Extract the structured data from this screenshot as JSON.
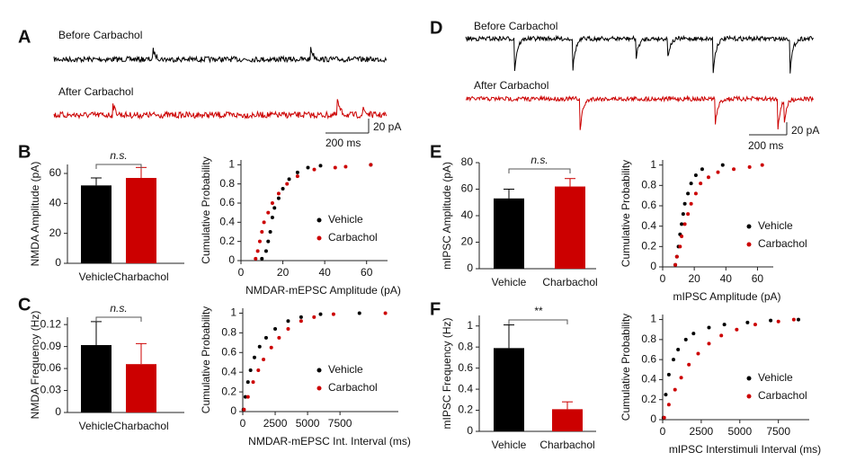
{
  "panel_labels": [
    "A",
    "B",
    "C",
    "D",
    "E",
    "F"
  ],
  "traces": [
    {
      "labels": [
        "Before Carbachol",
        "After Carbachol"
      ],
      "scale_x": "200 ms",
      "scale_y": "20 pA"
    },
    {
      "labels": [
        "Before Carbachol",
        "After Carbachol"
      ],
      "scale_x": "200 ms",
      "scale_y": "20 pA"
    }
  ],
  "chart_data": [
    {
      "type": "bar",
      "ylabel": "NMDA Amplitude (pA)",
      "categories": [
        "Vehicle",
        "Charbachol"
      ],
      "values": [
        52,
        57
      ],
      "errors": [
        5,
        7
      ],
      "colors": [
        "#000000",
        "#cc0000"
      ],
      "ylim": [
        0,
        66
      ],
      "yticks": [
        0,
        20,
        40,
        60
      ],
      "annotation": "n.s."
    },
    {
      "type": "scatter",
      "ylabel": "Cumulative Probability",
      "xlabel": "NMDAR-mEPSC Amplitude (pA)",
      "xlim": [
        0,
        70
      ],
      "xticks": [
        0,
        20,
        40,
        60
      ],
      "ylim": [
        0,
        1.05
      ],
      "yticks": [
        0,
        0.2,
        0.4,
        0.6,
        0.8,
        1
      ],
      "series": [
        {
          "name": "Vehicle",
          "color": "#000000",
          "x": [
            10,
            12,
            13,
            14,
            15,
            16,
            18,
            20,
            23,
            27,
            32,
            38,
            62
          ],
          "values": [
            0.02,
            0.1,
            0.2,
            0.3,
            0.45,
            0.55,
            0.65,
            0.75,
            0.85,
            0.92,
            0.97,
            0.99,
            1
          ]
        },
        {
          "name": "Carbachol",
          "color": "#cc0000",
          "x": [
            7,
            8,
            9,
            10,
            11,
            13,
            15,
            18,
            22,
            27,
            35,
            45,
            50,
            62
          ],
          "values": [
            0.02,
            0.1,
            0.2,
            0.3,
            0.4,
            0.5,
            0.6,
            0.7,
            0.8,
            0.88,
            0.95,
            0.97,
            0.98,
            1
          ]
        }
      ]
    },
    {
      "type": "bar",
      "ylabel": "NMDA Frequency (Hz)",
      "categories": [
        "Vehicle",
        "Charbachol"
      ],
      "values": [
        0.092,
        0.066
      ],
      "errors": [
        0.032,
        0.028
      ],
      "colors": [
        "#000000",
        "#cc0000"
      ],
      "ylim": [
        0,
        0.13
      ],
      "yticks": [
        0,
        0.03,
        0.06,
        0.09,
        0.12
      ],
      "annotation": "n.s."
    },
    {
      "type": "scatter",
      "ylabel": "Cumulative Probability",
      "xlabel": "NMDAR-mEPSC Int. Interval (ms)",
      "xlim": [
        0,
        12000
      ],
      "xticks": [
        0,
        2500,
        5000,
        7500
      ],
      "ylim": [
        0,
        1.05
      ],
      "yticks": [
        0,
        0.2,
        0.4,
        0.6,
        0.8,
        1
      ],
      "series": [
        {
          "name": "Vehicle",
          "color": "#000000",
          "x": [
            50,
            200,
            400,
            600,
            900,
            1300,
            1800,
            2500,
            3500,
            4500,
            6000,
            9000
          ],
          "values": [
            0.02,
            0.15,
            0.3,
            0.42,
            0.55,
            0.66,
            0.75,
            0.84,
            0.92,
            0.96,
            0.99,
            1
          ]
        },
        {
          "name": "Carbachol",
          "color": "#cc0000",
          "x": [
            100,
            400,
            800,
            1200,
            1600,
            2200,
            2800,
            3500,
            4500,
            5500,
            7000,
            11000
          ],
          "values": [
            0.02,
            0.15,
            0.3,
            0.42,
            0.53,
            0.65,
            0.75,
            0.84,
            0.92,
            0.96,
            0.99,
            1
          ]
        }
      ]
    },
    {
      "type": "bar",
      "ylabel": "mIPSC Amplitude (pA)",
      "categories": [
        "Vehicle",
        "Charbachol"
      ],
      "values": [
        53,
        62
      ],
      "errors": [
        7,
        6
      ],
      "colors": [
        "#000000",
        "#cc0000"
      ],
      "ylim": [
        0,
        80
      ],
      "yticks": [
        0,
        20,
        40,
        60,
        80
      ],
      "annotation": "n.s."
    },
    {
      "type": "scatter",
      "ylabel": "Cumulative Probability",
      "xlabel": "mIPSC Amplitude (pA)",
      "xlim": [
        0,
        70
      ],
      "xticks": [
        0,
        20,
        40,
        60
      ],
      "ylim": [
        0,
        1.05
      ],
      "yticks": [
        0,
        0.2,
        0.4,
        0.6,
        0.8,
        1
      ],
      "series": [
        {
          "name": "Vehicle",
          "color": "#000000",
          "x": [
            8,
            9,
            10,
            11,
            12,
            13,
            14,
            16,
            18,
            21,
            25,
            38
          ],
          "values": [
            0.02,
            0.1,
            0.2,
            0.32,
            0.42,
            0.52,
            0.62,
            0.72,
            0.82,
            0.9,
            0.96,
            1
          ]
        },
        {
          "name": "Carbachol",
          "color": "#cc0000",
          "x": [
            8,
            9,
            11,
            12,
            14,
            16,
            18,
            21,
            24,
            29,
            35,
            45,
            55,
            63
          ],
          "values": [
            0.02,
            0.1,
            0.2,
            0.3,
            0.42,
            0.52,
            0.62,
            0.72,
            0.82,
            0.88,
            0.93,
            0.96,
            0.98,
            1
          ]
        }
      ]
    },
    {
      "type": "bar",
      "ylabel": "mIPSC Frequency (Hz)",
      "categories": [
        "Vehicle",
        "Charbachol"
      ],
      "values": [
        0.79,
        0.21
      ],
      "errors": [
        0.22,
        0.07
      ],
      "colors": [
        "#000000",
        "#cc0000"
      ],
      "ylim": [
        0,
        1.1
      ],
      "yticks": [
        0,
        0.2,
        0.4,
        0.6,
        0.8,
        1
      ],
      "annotation": "**"
    },
    {
      "type": "scatter",
      "ylabel": "Cumulative Probability",
      "xlabel": "mIPSC Interstimuli Interval (ms)",
      "xlim": [
        0,
        9500
      ],
      "xticks": [
        0,
        2500,
        5000,
        7500
      ],
      "ylim": [
        0,
        1.05
      ],
      "yticks": [
        0,
        0.2,
        0.4,
        0.6,
        0.8,
        1
      ],
      "series": [
        {
          "name": "Vehicle",
          "color": "#000000",
          "x": [
            50,
            200,
            400,
            700,
            1000,
            1500,
            2000,
            3000,
            4000,
            5500,
            7000,
            8800
          ],
          "values": [
            0.02,
            0.25,
            0.45,
            0.6,
            0.7,
            0.8,
            0.86,
            0.92,
            0.95,
            0.97,
            0.99,
            1
          ]
        },
        {
          "name": "Carbachol",
          "color": "#cc0000",
          "x": [
            100,
            400,
            800,
            1200,
            1700,
            2300,
            3000,
            3800,
            4800,
            6000,
            7500,
            8500
          ],
          "values": [
            0.02,
            0.15,
            0.3,
            0.42,
            0.55,
            0.66,
            0.76,
            0.84,
            0.9,
            0.95,
            0.98,
            1
          ]
        }
      ]
    }
  ]
}
